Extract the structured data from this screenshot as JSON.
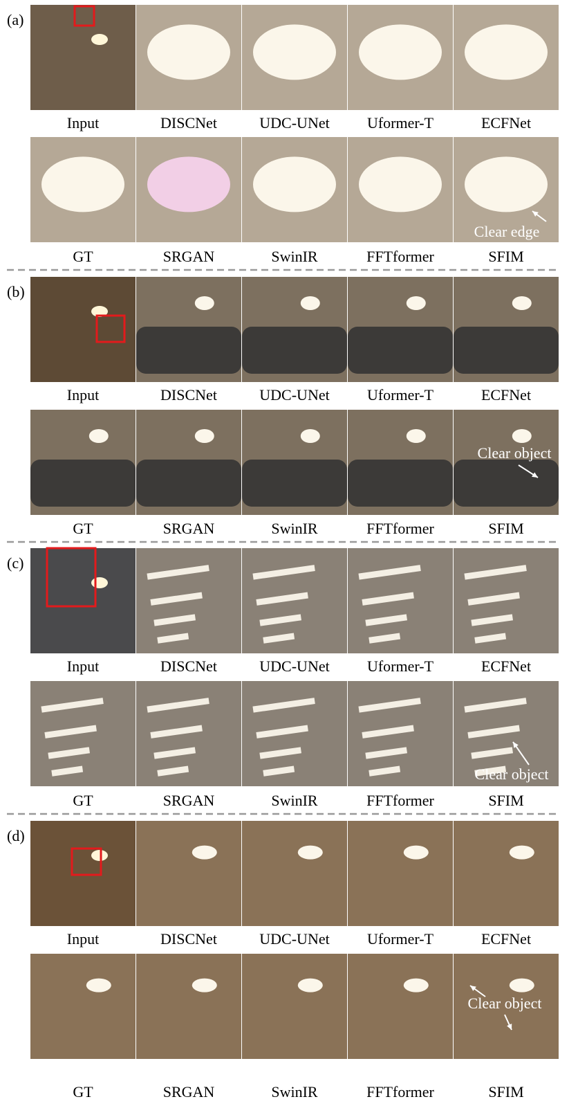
{
  "panels": [
    {
      "label": "(a)",
      "rows": [
        [
          "Input",
          "DISCNet",
          "UDC-UNet",
          "Uformer-T",
          "ECFNet"
        ],
        [
          "GT",
          "SRGAN",
          "SwinIR",
          "FFTformer",
          "SFIM"
        ]
      ],
      "annotation": "Clear edge"
    },
    {
      "label": "(b)",
      "rows": [
        [
          "Input",
          "DISCNet",
          "UDC-UNet",
          "Uformer-T",
          "ECFNet"
        ],
        [
          "GT",
          "SRGAN",
          "SwinIR",
          "FFTformer",
          "SFIM"
        ]
      ],
      "annotation": "Clear object"
    },
    {
      "label": "(c)",
      "rows": [
        [
          "Input",
          "DISCNet",
          "UDC-UNet",
          "Uformer-T",
          "ECFNet"
        ],
        [
          "GT",
          "SRGAN",
          "SwinIR",
          "FFTformer",
          "SFIM"
        ]
      ],
      "annotation": "Clear object"
    },
    {
      "label": "(d)",
      "rows": [
        [
          "Input",
          "DISCNet",
          "UDC-UNet",
          "Uformer-T",
          "ECFNet"
        ],
        [
          "GT",
          "SRGAN",
          "SwinIR",
          "FFTformer",
          "SFIM"
        ]
      ],
      "annotation": "Clear object"
    }
  ]
}
